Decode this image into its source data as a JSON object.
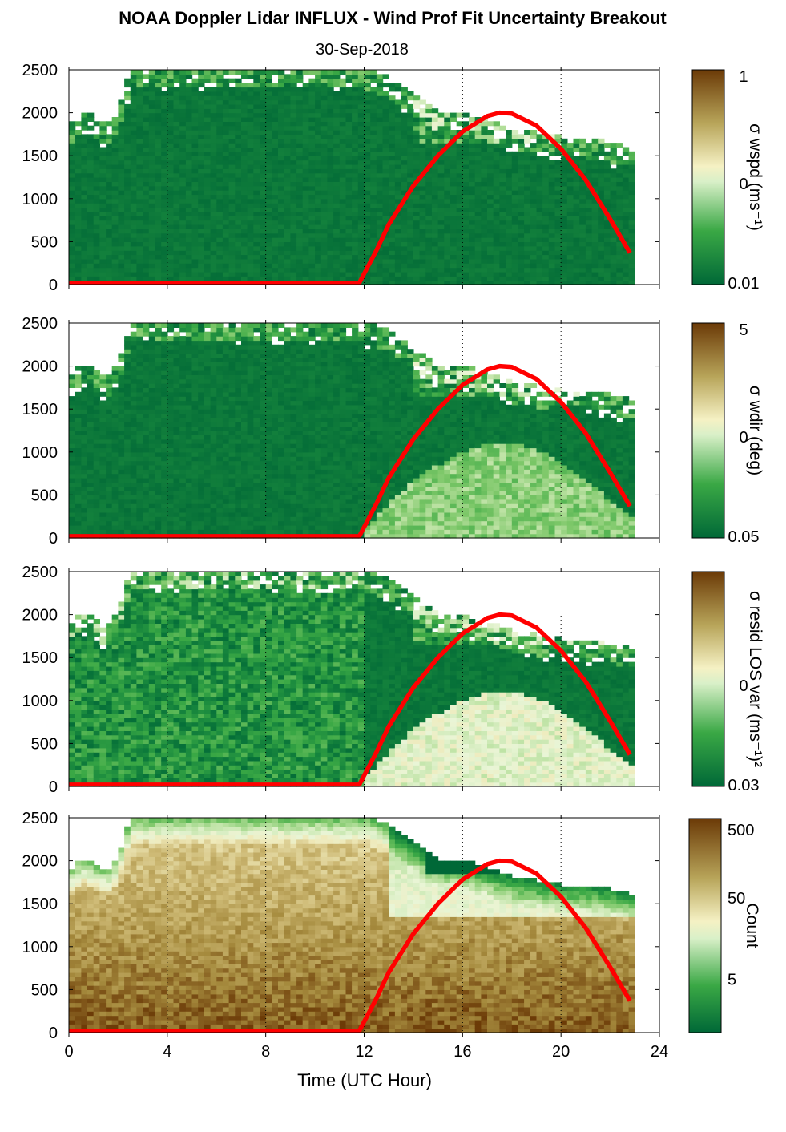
{
  "figure": {
    "title": "NOAA Doppler Lidar INFLUX - Wind Prof Fit Uncertainty Breakout",
    "subtitle": "30-Sep-2018",
    "xlabel": "Time (UTC Hour)"
  },
  "colors": {
    "low": "#006837",
    "high": "#6b3a07",
    "sun_line": "#ff0000"
  },
  "chart_data": [
    {
      "type": "heatmap",
      "panel": 1,
      "metric": "sigma_wspd",
      "x_range": [
        0,
        24
      ],
      "y_range": [
        0,
        2500
      ],
      "x_ticks": [
        "0",
        "4",
        "8",
        "12",
        "16",
        "20",
        "24"
      ],
      "y_ticks": [
        "0",
        "500",
        "1000",
        "1500",
        "2000",
        "2500"
      ],
      "grid_x": [
        4,
        8,
        12,
        16,
        20,
        24
      ],
      "colorbar": {
        "label": "σ wspd (ms⁻¹)",
        "ticks": [
          "1",
          "0",
          "0.01"
        ],
        "scale": "log"
      },
      "top_height_profile": {
        "time": [
          0,
          0.5,
          1,
          1.5,
          2,
          2.5,
          3,
          4,
          6,
          8,
          10,
          11.5,
          12,
          13,
          14,
          15,
          16,
          17,
          18,
          19,
          20,
          21,
          22,
          22.8
        ],
        "height": [
          1850,
          2000,
          1950,
          1850,
          2000,
          2500,
          2500,
          2500,
          2500,
          2500,
          2500,
          2500,
          2500,
          2400,
          2200,
          2000,
          2000,
          1900,
          1800,
          1750,
          1700,
          1700,
          1650,
          1600
        ]
      },
      "sun_line": {
        "time": [
          0,
          11.8,
          12.5,
          13,
          14,
          15,
          16,
          17,
          17.5,
          18,
          19,
          20,
          21,
          22,
          22.8
        ],
        "height": [
          20,
          20,
          400,
          700,
          1150,
          1500,
          1780,
          1960,
          2000,
          1990,
          1850,
          1580,
          1220,
          760,
          370
        ]
      }
    },
    {
      "type": "heatmap",
      "panel": 2,
      "metric": "sigma_wdir",
      "x_range": [
        0,
        24
      ],
      "y_range": [
        0,
        2500
      ],
      "x_ticks": [
        "0",
        "4",
        "8",
        "12",
        "16",
        "20",
        "24"
      ],
      "y_ticks": [
        "0",
        "500",
        "1000",
        "1500",
        "2000",
        "2500"
      ],
      "grid_x": [
        4,
        8,
        12,
        16,
        20,
        24
      ],
      "colorbar": {
        "label": "σ wdir (deg)",
        "ticks": [
          "5",
          "0",
          "0.05"
        ],
        "scale": "log"
      },
      "top_height_profile": {
        "time": [
          0,
          0.5,
          1,
          1.5,
          2,
          2.5,
          3,
          4,
          6,
          8,
          10,
          11.5,
          12,
          13,
          14,
          15,
          16,
          17,
          18,
          19,
          20,
          21,
          22,
          22.8
        ],
        "height": [
          1850,
          2000,
          1950,
          1850,
          2000,
          2500,
          2500,
          2500,
          2500,
          2500,
          2500,
          2500,
          2500,
          2400,
          2200,
          2000,
          2000,
          1900,
          1800,
          1750,
          1700,
          1700,
          1650,
          1600
        ]
      },
      "sun_line": {
        "time": [
          0,
          11.8,
          12.5,
          13,
          14,
          15,
          16,
          17,
          17.5,
          18,
          19,
          20,
          21,
          22,
          22.8
        ],
        "height": [
          20,
          20,
          400,
          700,
          1150,
          1500,
          1780,
          1960,
          2000,
          1990,
          1850,
          1580,
          1220,
          760,
          370
        ]
      }
    },
    {
      "type": "heatmap",
      "panel": 3,
      "metric": "sigma_resid_LOS_var",
      "x_range": [
        0,
        24
      ],
      "y_range": [
        0,
        2500
      ],
      "x_ticks": [
        "0",
        "4",
        "8",
        "12",
        "16",
        "20",
        "24"
      ],
      "y_ticks": [
        "0",
        "500",
        "1000",
        "1500",
        "2000",
        "2500"
      ],
      "grid_x": [
        4,
        8,
        12,
        16,
        20,
        24
      ],
      "colorbar": {
        "label": "σ resid LOS var (ms⁻¹)²",
        "ticks": [
          "",
          "0",
          "0.03"
        ],
        "scale": "log"
      },
      "top_height_profile": {
        "time": [
          0,
          0.5,
          1,
          1.5,
          2,
          2.5,
          3,
          4,
          6,
          8,
          10,
          11.5,
          12,
          13,
          14,
          15,
          16,
          17,
          18,
          19,
          20,
          21,
          22,
          22.8
        ],
        "height": [
          1850,
          2000,
          1950,
          1850,
          2000,
          2500,
          2500,
          2500,
          2500,
          2500,
          2500,
          2500,
          2500,
          2400,
          2200,
          2000,
          2000,
          1900,
          1800,
          1750,
          1700,
          1700,
          1650,
          1600
        ]
      },
      "sun_line": {
        "time": [
          0,
          11.8,
          12.5,
          13,
          14,
          15,
          16,
          17,
          17.5,
          18,
          19,
          20,
          21,
          22,
          22.8
        ],
        "height": [
          20,
          20,
          400,
          700,
          1150,
          1500,
          1780,
          1960,
          2000,
          1990,
          1850,
          1580,
          1220,
          760,
          370
        ]
      }
    },
    {
      "type": "heatmap",
      "panel": 4,
      "metric": "count",
      "x_range": [
        0,
        24
      ],
      "y_range": [
        0,
        2500
      ],
      "x_ticks": [
        "0",
        "4",
        "8",
        "12",
        "16",
        "20",
        "24"
      ],
      "y_ticks": [
        "0",
        "500",
        "1000",
        "1500",
        "2000",
        "2500"
      ],
      "grid_x": [
        4,
        8,
        12,
        16,
        20,
        24
      ],
      "colorbar": {
        "label": "Count",
        "ticks": [
          "500",
          "50",
          "5"
        ],
        "scale": "log"
      },
      "top_height_profile": {
        "time": [
          0,
          0.5,
          1,
          1.5,
          2,
          2.5,
          3,
          4,
          6,
          8,
          10,
          11.5,
          12,
          13,
          14,
          15,
          16,
          17,
          18,
          19,
          20,
          21,
          22,
          22.8
        ],
        "height": [
          1850,
          2000,
          1950,
          1850,
          2000,
          2500,
          2500,
          2500,
          2500,
          2500,
          2500,
          2500,
          2500,
          2400,
          2200,
          2000,
          2000,
          1900,
          1800,
          1750,
          1700,
          1700,
          1650,
          1600
        ]
      },
      "sun_line": {
        "time": [
          0,
          11.8,
          12.5,
          13,
          14,
          15,
          16,
          17,
          17.5,
          18,
          19,
          20,
          21,
          22,
          22.8
        ],
        "height": [
          20,
          20,
          400,
          700,
          1150,
          1500,
          1780,
          1960,
          2000,
          1990,
          1850,
          1580,
          1220,
          760,
          370
        ]
      }
    }
  ]
}
